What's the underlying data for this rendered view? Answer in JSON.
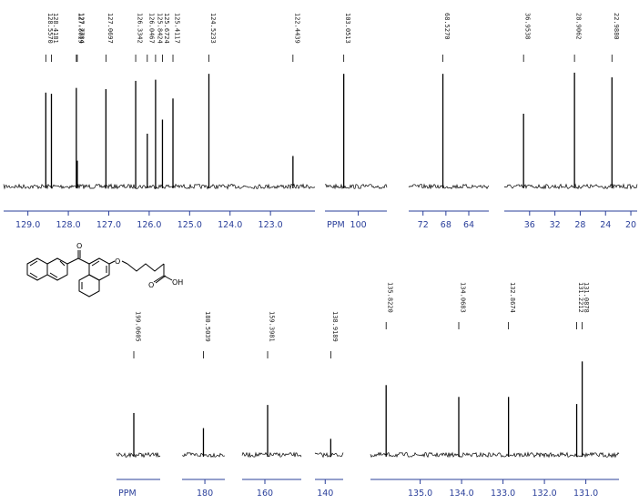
{
  "colors": {
    "spectrum": "#000000",
    "axis": "#2a3f9a",
    "label_line": "#000000"
  },
  "chart_data": [
    {
      "type": "line",
      "name": "aromatic-upper",
      "xlim": [
        129.6,
        121.9
      ],
      "ticks": [
        "129.0",
        "128.0",
        "127.0",
        "126.0",
        "125.0",
        "124.0",
        "123.0"
      ],
      "tick_values": [
        129.0,
        128.0,
        127.0,
        126.0,
        125.0,
        124.0,
        123.0
      ],
      "x_title": "",
      "peaks": [
        {
          "label": "128.5570",
          "x": 128.557,
          "h": 0.8
        },
        {
          "label": "128.4181",
          "x": 128.418,
          "h": 0.79
        },
        {
          "label": "127.8019",
          "x": 127.802,
          "h": 0.84
        },
        {
          "label": "127.7784",
          "x": 127.778,
          "h": 0.22
        },
        {
          "label": "127.0697",
          "x": 127.07,
          "h": 0.83
        },
        {
          "label": "126.3342",
          "x": 126.334,
          "h": 0.9
        },
        {
          "label": "126.0467",
          "x": 126.047,
          "h": 0.45
        },
        {
          "label": "125.8424",
          "x": 125.842,
          "h": 0.91
        },
        {
          "label": "125.6724",
          "x": 125.672,
          "h": 0.57
        },
        {
          "label": "125.4117",
          "x": 125.412,
          "h": 0.75
        },
        {
          "label": "124.5233",
          "x": 124.523,
          "h": 0.96
        },
        {
          "label": "122.4439",
          "x": 122.444,
          "h": 0.26
        }
      ]
    },
    {
      "type": "line",
      "name": "panel-100",
      "xlim": [
        107,
        94
      ],
      "ticks": [
        "100"
      ],
      "tick_values": [
        100
      ],
      "x_title": "PPM",
      "peaks": [
        {
          "label": "103.0513",
          "x": 103.051,
          "h": 0.96
        }
      ]
    },
    {
      "type": "line",
      "name": "panel-68",
      "xlim": [
        74.5,
        60.5
      ],
      "ticks": [
        "72",
        "68",
        "64"
      ],
      "tick_values": [
        72,
        68,
        64
      ],
      "x_title": "",
      "peaks": [
        {
          "label": "68.5270",
          "x": 68.527,
          "h": 0.96
        }
      ]
    },
    {
      "type": "line",
      "name": "panel-aliphatic",
      "xlim": [
        40,
        19
      ],
      "ticks": [
        "36",
        "32",
        "28",
        "24",
        "20"
      ],
      "tick_values": [
        36,
        32,
        28,
        24,
        20
      ],
      "x_title": "",
      "peaks": [
        {
          "label": "36.9538",
          "x": 36.954,
          "h": 0.62
        },
        {
          "label": "28.9062",
          "x": 28.906,
          "h": 0.97
        },
        {
          "label": "22.9880",
          "x": 22.988,
          "h": 0.93
        }
      ]
    },
    {
      "type": "line",
      "name": "panel-199",
      "xlim": [
        205,
        190
      ],
      "ticks": [],
      "tick_values": [],
      "x_title": "PPM",
      "peaks": [
        {
          "label": "199.0605",
          "x": 199.06,
          "h": 0.47
        }
      ]
    },
    {
      "type": "line",
      "name": "panel-180",
      "xlim": [
        188,
        173
      ],
      "ticks": [
        "180"
      ],
      "tick_values": [
        180
      ],
      "x_title": "",
      "peaks": [
        {
          "label": "180.5039",
          "x": 180.504,
          "h": 0.3
        }
      ]
    },
    {
      "type": "line",
      "name": "panel-160",
      "xlim": [
        165,
        152
      ],
      "ticks": [
        "160"
      ],
      "tick_values": [
        160
      ],
      "x_title": "",
      "peaks": [
        {
          "label": "159.3981",
          "x": 159.398,
          "h": 0.56
        }
      ]
    },
    {
      "type": "line",
      "name": "panel-139",
      "xlim": [
        142,
        136.5
      ],
      "ticks": [
        "140"
      ],
      "tick_values": [
        140
      ],
      "x_title": "",
      "peaks": [
        {
          "label": "138.9189",
          "x": 138.919,
          "h": 0.18
        }
      ]
    },
    {
      "type": "line",
      "name": "aromatic-lower",
      "xlim": [
        136.2,
        130.2
      ],
      "ticks": [
        "135.0",
        "134.0",
        "133.0",
        "132.0",
        "131.0"
      ],
      "tick_values": [
        135.0,
        134.0,
        133.0,
        132.0,
        131.0
      ],
      "x_title": "",
      "peaks": [
        {
          "label": "135.8220",
          "x": 135.822,
          "h": 0.59
        },
        {
          "label": "134.0683",
          "x": 134.068,
          "h": 0.49
        },
        {
          "label": "132.8674",
          "x": 132.867,
          "h": 0.49
        },
        {
          "label": "131.2212",
          "x": 131.221,
          "h": 0.43
        },
        {
          "label": "131.0878",
          "x": 131.088,
          "h": 0.79
        }
      ]
    }
  ],
  "molecule": {
    "carbonyl_o": "O",
    "ether_o": "O",
    "acid_oh": "OH",
    "acid_o": "O"
  }
}
